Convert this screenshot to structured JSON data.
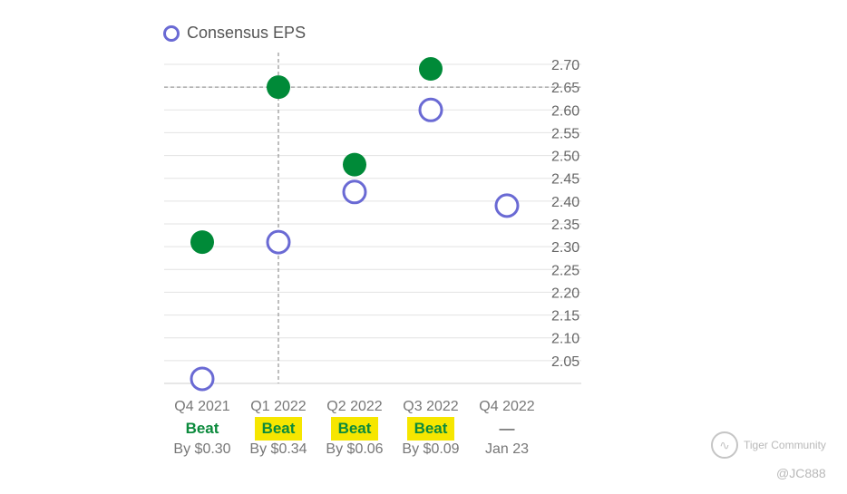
{
  "legend": {
    "label": "Consensus EPS"
  },
  "colors": {
    "consensus": "#6a6ad4",
    "actual": "#008a38",
    "highlight": "#f6e600",
    "beat_text": "#0b8a3c"
  },
  "chart_data": {
    "type": "scatter",
    "categories": [
      "Q4 2021",
      "Q1 2022",
      "Q2 2022",
      "Q3 2022",
      "Q4 2022"
    ],
    "series": [
      {
        "name": "Consensus EPS",
        "values": [
          2.01,
          2.31,
          2.42,
          2.6,
          2.39
        ]
      },
      {
        "values": [
          2.31,
          2.65,
          2.48,
          2.69,
          null
        ]
      }
    ],
    "y_ticks": [
      "2.70",
      "2.65",
      "2.60",
      "2.55",
      "2.50",
      "2.45",
      "2.40",
      "2.35",
      "2.30",
      "2.25",
      "2.20",
      "2.15",
      "2.10",
      "2.05"
    ],
    "ylim": [
      2.0,
      2.7
    ],
    "crosshair": {
      "category": "Q1 2022",
      "value": 2.65
    },
    "results": [
      "Beat",
      "Beat",
      "Beat",
      "Beat",
      "—"
    ],
    "result_highlighted": [
      false,
      true,
      true,
      true,
      false
    ],
    "result_details": [
      "By $0.30",
      "By $0.34",
      "By $0.06",
      "By $0.09",
      "Jan 23"
    ],
    "y_axis_position": "right",
    "legend_position": "top-left",
    "grid": true
  },
  "watermark": {
    "brand": "Tiger Community",
    "user": "@JC888",
    "logo_icon": "tiger-logo-icon"
  }
}
